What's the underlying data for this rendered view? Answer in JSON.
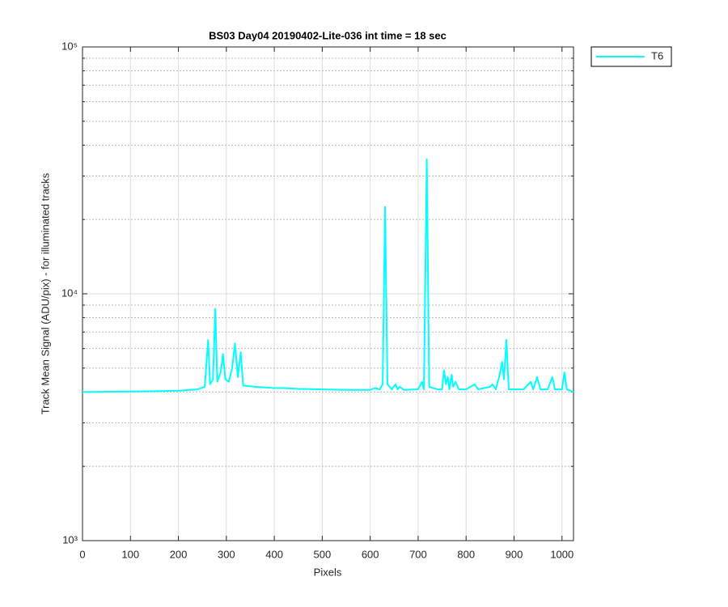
{
  "chart_data": {
    "type": "line",
    "title": "BS03 Day04 20190402-Lite-036 int time = 18 sec",
    "x_label": "Pixels",
    "y_label": "Track Mean Signal (ADU/pix) - for illuminated tracks",
    "log_y": true,
    "grid": true,
    "legend_position": "outside-top-right",
    "xlim": [
      0,
      1024
    ],
    "ylim": [
      1000,
      100000
    ],
    "xticks": [
      0,
      100,
      200,
      300,
      400,
      500,
      600,
      700,
      800,
      900,
      1000
    ],
    "yticks": [
      {
        "value": 1000,
        "label": "10³"
      },
      {
        "value": 10000,
        "label": "10⁴"
      },
      {
        "value": 100000,
        "label": "10⁵"
      }
    ],
    "yminorticks": [
      2000,
      3000,
      4000,
      5000,
      6000,
      7000,
      8000,
      9000,
      20000,
      30000,
      40000,
      50000,
      60000,
      70000,
      80000,
      90000
    ],
    "x": [
      0,
      50,
      100,
      150,
      200,
      240,
      255,
      262,
      266,
      272,
      277,
      281,
      288,
      293,
      298,
      305,
      312,
      318,
      324,
      330,
      335,
      360,
      400,
      420,
      450,
      500,
      550,
      600,
      610,
      620,
      626,
      631,
      636,
      645,
      653,
      657,
      662,
      670,
      700,
      708,
      712,
      718,
      723,
      740,
      750,
      754,
      758,
      762,
      765,
      770,
      773,
      778,
      785,
      800,
      818,
      825,
      850,
      855,
      862,
      870,
      875,
      879,
      884,
      889,
      900,
      920,
      935,
      940,
      948,
      955,
      970,
      980,
      985,
      1000,
      1005,
      1010,
      1024
    ],
    "series": [
      {
        "name": "T6",
        "color": "#00ffff",
        "values": [
          4000,
          4010,
          4020,
          4030,
          4050,
          4100,
          4200,
          6500,
          4300,
          4500,
          8700,
          4400,
          4800,
          5700,
          4500,
          4400,
          5000,
          6300,
          4600,
          5800,
          4250,
          4200,
          4150,
          4150,
          4120,
          4100,
          4080,
          4080,
          4150,
          4100,
          4300,
          22500,
          4300,
          4100,
          4300,
          4100,
          4200,
          4080,
          4100,
          4400,
          4100,
          35000,
          4200,
          4100,
          4100,
          4900,
          4300,
          4600,
          4100,
          4700,
          4200,
          4400,
          4100,
          4100,
          4300,
          4100,
          4200,
          4300,
          4100,
          4700,
          5300,
          4500,
          6500,
          4100,
          4100,
          4100,
          4400,
          4100,
          4600,
          4100,
          4100,
          4600,
          4100,
          4100,
          4800,
          4100,
          4000
        ]
      }
    ]
  }
}
